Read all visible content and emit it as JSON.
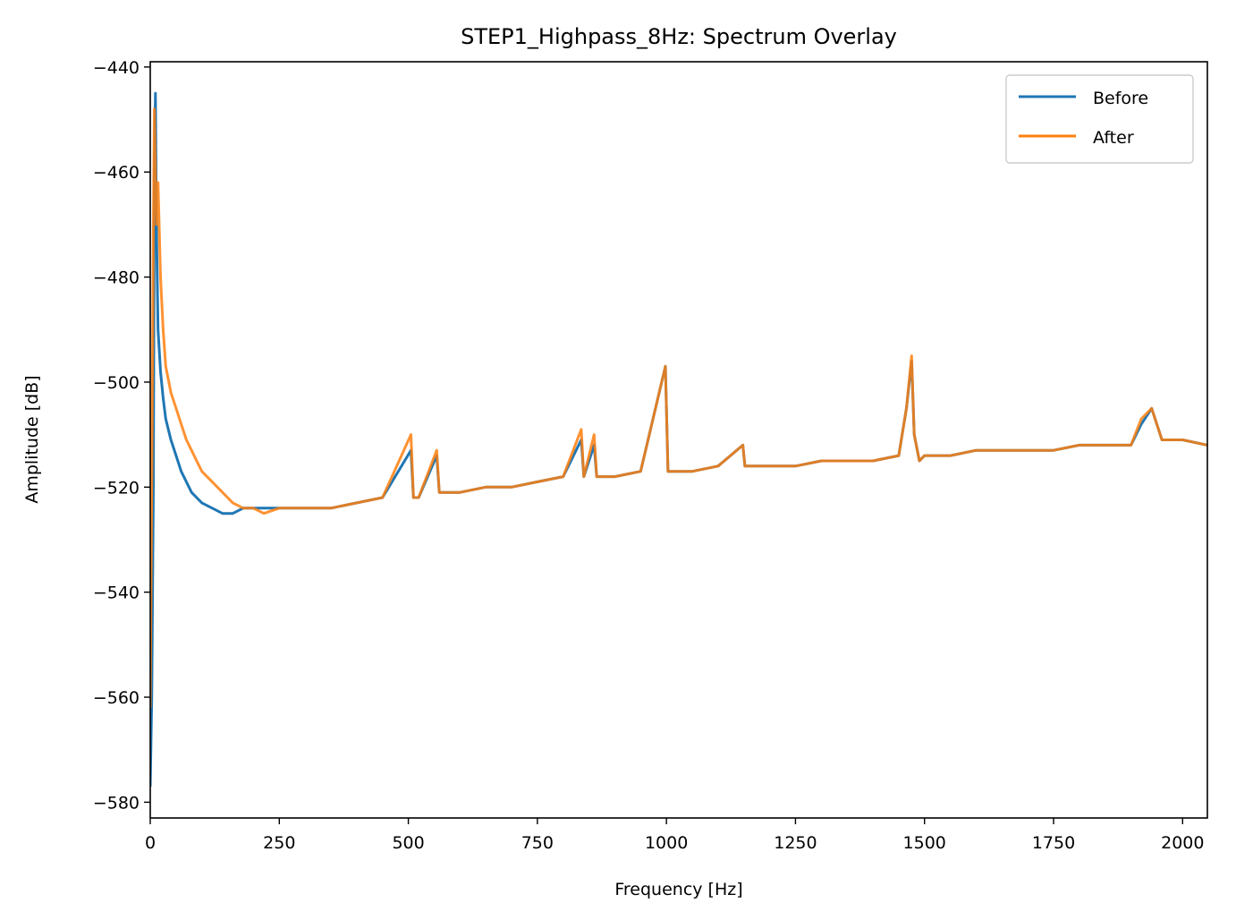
{
  "chart_data": {
    "type": "line",
    "title": "STEP1_Highpass_8Hz: Spectrum Overlay",
    "xlabel": "Frequency [Hz]",
    "ylabel": "Amplitude [dB]",
    "xlim": [
      0,
      2048
    ],
    "ylim": [
      -583,
      -439
    ],
    "x_ticks": [
      0,
      250,
      500,
      750,
      1000,
      1250,
      1500,
      1750,
      2000
    ],
    "x_tick_labels": [
      "0",
      "250",
      "500",
      "750",
      "1000",
      "1250",
      "1500",
      "1750",
      "2000"
    ],
    "y_ticks": [
      -440,
      -460,
      -480,
      -500,
      -520,
      -540,
      -560,
      -580
    ],
    "y_tick_labels": [
      "−440",
      "−460",
      "−480",
      "−500",
      "−520",
      "−540",
      "−560",
      "−580"
    ],
    "grid": false,
    "legend_position": "top-right",
    "series": [
      {
        "name": "Before",
        "color": "#1f77b4",
        "points": [
          [
            0,
            -577
          ],
          [
            3,
            -560
          ],
          [
            6,
            -520
          ],
          [
            8,
            -460
          ],
          [
            10,
            -445
          ],
          [
            12,
            -470
          ],
          [
            15,
            -490
          ],
          [
            20,
            -498
          ],
          [
            25,
            -503
          ],
          [
            30,
            -507
          ],
          [
            40,
            -511
          ],
          [
            50,
            -514
          ],
          [
            60,
            -517
          ],
          [
            70,
            -519
          ],
          [
            80,
            -521
          ],
          [
            90,
            -522
          ],
          [
            100,
            -523
          ],
          [
            120,
            -524
          ],
          [
            140,
            -525
          ],
          [
            160,
            -525
          ],
          [
            180,
            -524
          ],
          [
            200,
            -524
          ],
          [
            220,
            -524
          ],
          [
            250,
            -524
          ],
          [
            300,
            -524
          ],
          [
            350,
            -524
          ],
          [
            400,
            -523
          ],
          [
            450,
            -522
          ],
          [
            505,
            -513
          ],
          [
            510,
            -522
          ],
          [
            520,
            -522
          ],
          [
            555,
            -514
          ],
          [
            560,
            -521
          ],
          [
            600,
            -521
          ],
          [
            650,
            -520
          ],
          [
            700,
            -520
          ],
          [
            750,
            -519
          ],
          [
            800,
            -518
          ],
          [
            835,
            -511
          ],
          [
            840,
            -518
          ],
          [
            860,
            -512
          ],
          [
            865,
            -518
          ],
          [
            900,
            -518
          ],
          [
            950,
            -517
          ],
          [
            998,
            -497
          ],
          [
            1003,
            -517
          ],
          [
            1050,
            -517
          ],
          [
            1100,
            -516
          ],
          [
            1148,
            -512
          ],
          [
            1152,
            -516
          ],
          [
            1200,
            -516
          ],
          [
            1250,
            -516
          ],
          [
            1300,
            -515
          ],
          [
            1350,
            -515
          ],
          [
            1400,
            -515
          ],
          [
            1450,
            -514
          ],
          [
            1465,
            -505
          ],
          [
            1475,
            -496
          ],
          [
            1480,
            -510
          ],
          [
            1490,
            -515
          ],
          [
            1500,
            -514
          ],
          [
            1550,
            -514
          ],
          [
            1600,
            -513
          ],
          [
            1650,
            -513
          ],
          [
            1700,
            -513
          ],
          [
            1750,
            -513
          ],
          [
            1800,
            -512
          ],
          [
            1850,
            -512
          ],
          [
            1900,
            -512
          ],
          [
            1920,
            -508
          ],
          [
            1940,
            -505
          ],
          [
            1960,
            -511
          ],
          [
            2000,
            -511
          ],
          [
            2048,
            -512
          ]
        ]
      },
      {
        "name": "After",
        "color": "#ff7f0e",
        "points": [
          [
            0,
            -562
          ],
          [
            3,
            -520
          ],
          [
            6,
            -470
          ],
          [
            8,
            -448
          ],
          [
            10,
            -460
          ],
          [
            12,
            -470
          ],
          [
            15,
            -462
          ],
          [
            20,
            -480
          ],
          [
            25,
            -490
          ],
          [
            30,
            -497
          ],
          [
            40,
            -502
          ],
          [
            50,
            -505
          ],
          [
            60,
            -508
          ],
          [
            70,
            -511
          ],
          [
            80,
            -513
          ],
          [
            90,
            -515
          ],
          [
            100,
            -517
          ],
          [
            120,
            -519
          ],
          [
            140,
            -521
          ],
          [
            160,
            -523
          ],
          [
            180,
            -524
          ],
          [
            200,
            -524
          ],
          [
            220,
            -525
          ],
          [
            250,
            -524
          ],
          [
            300,
            -524
          ],
          [
            350,
            -524
          ],
          [
            400,
            -523
          ],
          [
            450,
            -522
          ],
          [
            505,
            -510
          ],
          [
            510,
            -522
          ],
          [
            520,
            -522
          ],
          [
            555,
            -513
          ],
          [
            560,
            -521
          ],
          [
            600,
            -521
          ],
          [
            650,
            -520
          ],
          [
            700,
            -520
          ],
          [
            750,
            -519
          ],
          [
            800,
            -518
          ],
          [
            835,
            -509
          ],
          [
            840,
            -518
          ],
          [
            860,
            -510
          ],
          [
            865,
            -518
          ],
          [
            900,
            -518
          ],
          [
            950,
            -517
          ],
          [
            998,
            -497
          ],
          [
            1003,
            -517
          ],
          [
            1050,
            -517
          ],
          [
            1100,
            -516
          ],
          [
            1148,
            -512
          ],
          [
            1152,
            -516
          ],
          [
            1200,
            -516
          ],
          [
            1250,
            -516
          ],
          [
            1300,
            -515
          ],
          [
            1350,
            -515
          ],
          [
            1400,
            -515
          ],
          [
            1450,
            -514
          ],
          [
            1465,
            -505
          ],
          [
            1475,
            -495
          ],
          [
            1480,
            -510
          ],
          [
            1490,
            -515
          ],
          [
            1500,
            -514
          ],
          [
            1550,
            -514
          ],
          [
            1600,
            -513
          ],
          [
            1650,
            -513
          ],
          [
            1700,
            -513
          ],
          [
            1750,
            -513
          ],
          [
            1800,
            -512
          ],
          [
            1850,
            -512
          ],
          [
            1900,
            -512
          ],
          [
            1920,
            -507
          ],
          [
            1940,
            -505
          ],
          [
            1960,
            -511
          ],
          [
            2000,
            -511
          ],
          [
            2048,
            -512
          ]
        ]
      }
    ]
  }
}
